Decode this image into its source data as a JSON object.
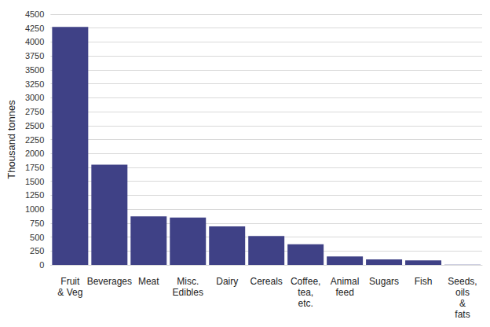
{
  "chart_data": {
    "type": "bar",
    "y_label": "Thousand tonnes",
    "categories": [
      "Fruit\n& Veg",
      "Beverages",
      "Meat",
      "Misc.\nEdibles",
      "Dairy",
      "Cereals",
      "Coffee,\ntea,\netc.",
      "Animal\nfeed",
      "Sugars",
      "Fish",
      "Seeds,\noils\n&\nfats"
    ],
    "values": [
      4270,
      1800,
      870,
      850,
      690,
      520,
      370,
      150,
      100,
      80,
      5
    ],
    "color": "#3f4186",
    "ylim": [
      0,
      4500
    ],
    "yticks": [
      0,
      250,
      500,
      750,
      1000,
      1250,
      1500,
      1750,
      2000,
      2250,
      2500,
      2750,
      3000,
      3250,
      3500,
      3750,
      4000,
      4250,
      4500
    ],
    "grid": true
  }
}
